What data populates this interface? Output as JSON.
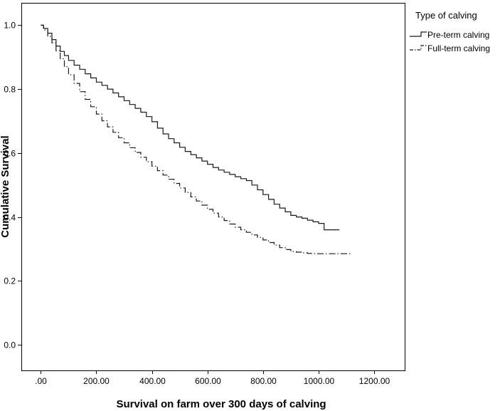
{
  "chart_data": {
    "type": "line",
    "title": "",
    "xlabel": "Survival on farm over 300 days of calving",
    "ylabel": "Cumulative Survival",
    "xlim": [
      -70,
      1310
    ],
    "ylim": [
      -0.08,
      1.07
    ],
    "xticks": [
      0,
      200,
      400,
      600,
      800,
      1000,
      1200
    ],
    "xtick_labels": [
      ".00",
      "200.00",
      "400.00",
      "600.00",
      "800.00",
      "1000.00",
      "1200.00"
    ],
    "yticks": [
      0.0,
      0.2,
      0.4,
      0.6,
      0.8,
      1.0
    ],
    "ytick_labels": [
      "0.0",
      "0.2",
      "0.4",
      "0.6",
      "0.8",
      "1.0"
    ],
    "grid": false,
    "legend": {
      "title": "Type of calving",
      "placement": "right, outside plot"
    },
    "series": [
      {
        "name": "Pre-term calving",
        "color": "#1a1a1a",
        "style": "solid-step",
        "x": [
          0,
          10,
          25,
          40,
          55,
          70,
          85,
          100,
          120,
          140,
          160,
          180,
          200,
          220,
          240,
          260,
          280,
          300,
          320,
          340,
          360,
          380,
          400,
          420,
          440,
          460,
          480,
          500,
          520,
          540,
          560,
          580,
          600,
          620,
          640,
          660,
          680,
          700,
          720,
          740,
          760,
          780,
          800,
          820,
          840,
          860,
          880,
          900,
          920,
          940,
          960,
          980,
          1000,
          1020,
          1040,
          1060,
          1075
        ],
        "y": [
          1.0,
          0.99,
          0.975,
          0.955,
          0.935,
          0.918,
          0.905,
          0.89,
          0.875,
          0.862,
          0.848,
          0.835,
          0.822,
          0.812,
          0.8,
          0.788,
          0.776,
          0.764,
          0.752,
          0.74,
          0.728,
          0.714,
          0.698,
          0.678,
          0.66,
          0.645,
          0.632,
          0.618,
          0.605,
          0.595,
          0.585,
          0.575,
          0.565,
          0.555,
          0.547,
          0.54,
          0.533,
          0.526,
          0.52,
          0.514,
          0.5,
          0.485,
          0.47,
          0.455,
          0.44,
          0.428,
          0.416,
          0.405,
          0.4,
          0.396,
          0.39,
          0.385,
          0.38,
          0.36,
          0.36,
          0.36,
          0.36
        ]
      },
      {
        "name": "Full-term calving",
        "color": "#1a1a1a",
        "style": "dash-dot-step",
        "x": [
          0,
          10,
          25,
          40,
          55,
          70,
          85,
          100,
          120,
          140,
          160,
          180,
          200,
          220,
          240,
          260,
          280,
          300,
          320,
          340,
          360,
          380,
          400,
          420,
          440,
          460,
          480,
          500,
          520,
          540,
          560,
          580,
          600,
          620,
          640,
          660,
          680,
          700,
          720,
          740,
          760,
          780,
          800,
          820,
          840,
          860,
          880,
          900,
          920,
          940,
          960,
          980,
          1000,
          1020,
          1040,
          1060,
          1080,
          1100,
          1115
        ],
        "y": [
          1.0,
          0.985,
          0.965,
          0.945,
          0.92,
          0.895,
          0.87,
          0.845,
          0.818,
          0.792,
          0.768,
          0.745,
          0.722,
          0.701,
          0.682,
          0.665,
          0.648,
          0.632,
          0.617,
          0.602,
          0.587,
          0.573,
          0.559,
          0.545,
          0.531,
          0.518,
          0.505,
          0.491,
          0.477,
          0.463,
          0.45,
          0.437,
          0.424,
          0.412,
          0.4,
          0.389,
          0.378,
          0.368,
          0.36,
          0.352,
          0.344,
          0.336,
          0.328,
          0.32,
          0.312,
          0.304,
          0.298,
          0.292,
          0.29,
          0.288,
          0.286,
          0.285,
          0.285,
          0.285,
          0.285,
          0.285,
          0.285,
          0.285,
          0.285
        ]
      }
    ]
  }
}
